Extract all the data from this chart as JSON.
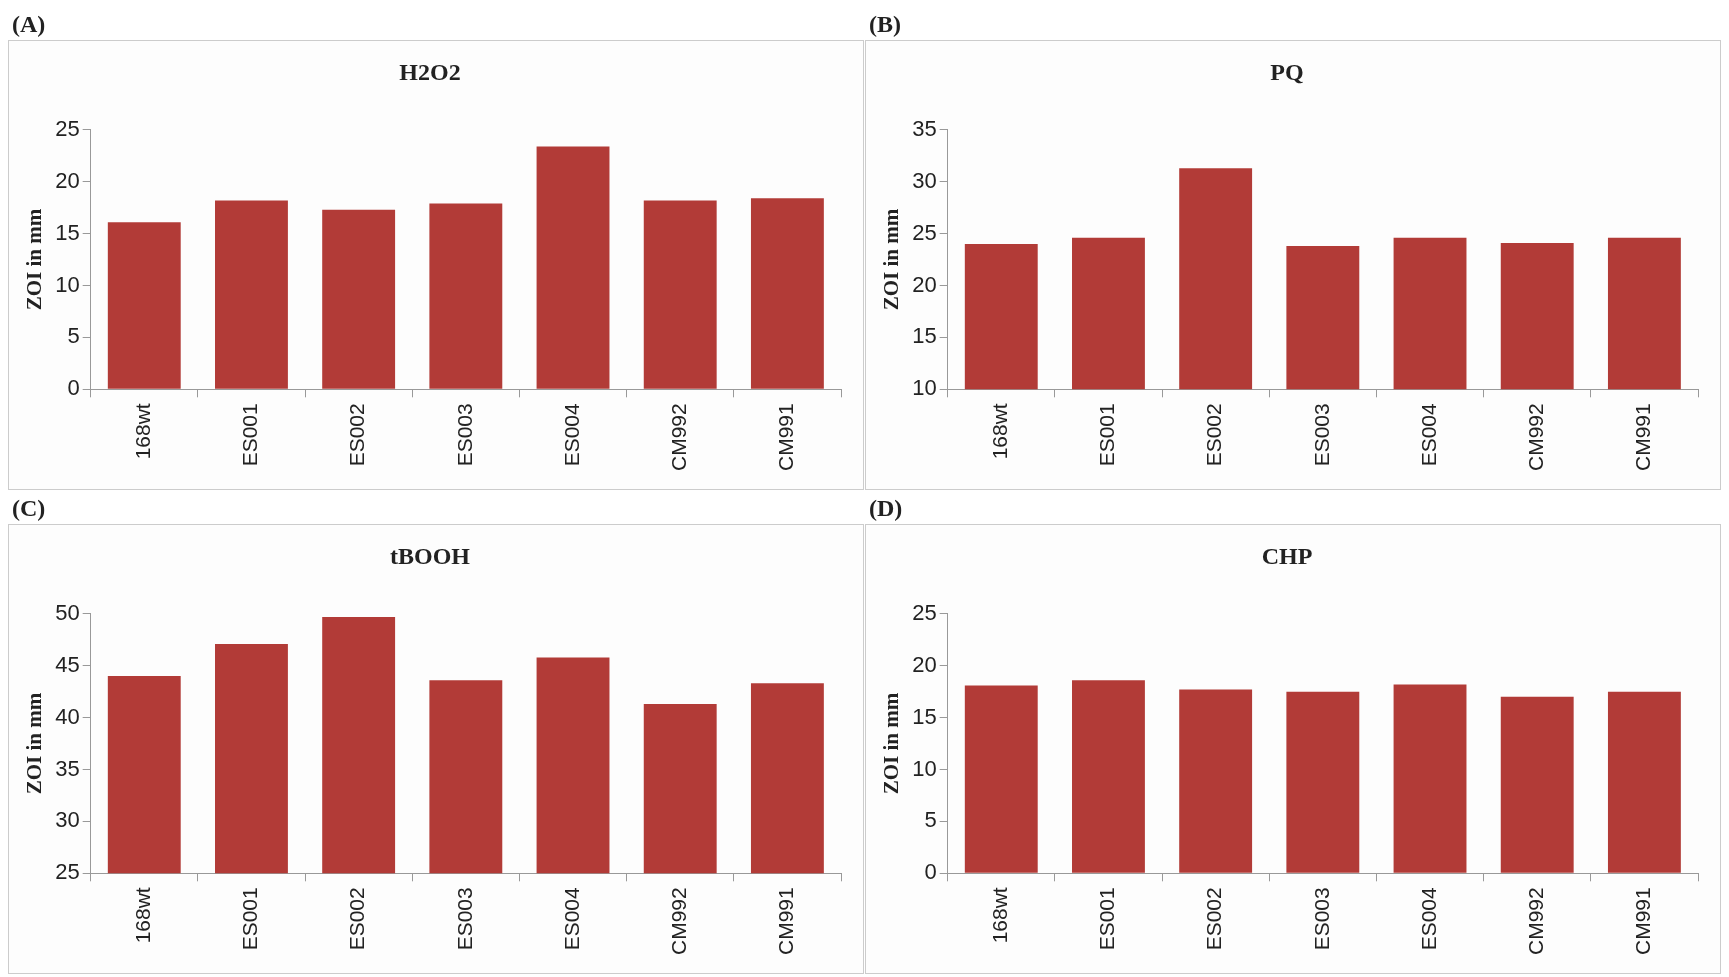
{
  "chart_data": [
    {
      "type": "bar",
      "title": "H2O2",
      "ylabel": "ZOI in mm",
      "annotations": [
        "(A)"
      ],
      "categories": [
        "168wt",
        "ES001",
        "ES002",
        "ES003",
        "ES004",
        "CM992",
        "CM991"
      ],
      "values": [
        16.1,
        18.2,
        17.3,
        17.9,
        23.4,
        18.2,
        18.4
      ],
      "color": "#b23b37",
      "ylim": [
        0,
        25
      ],
      "yticks": [
        0,
        5,
        10,
        15,
        20,
        25
      ]
    },
    {
      "type": "bar",
      "title": "PQ",
      "ylabel": "ZOI in mm",
      "annotations": [
        "(B)"
      ],
      "categories": [
        "168wt",
        "ES001",
        "ES002",
        "ES003",
        "ES004",
        "CM992",
        "CM991"
      ],
      "values": [
        24.0,
        24.6,
        31.3,
        23.8,
        24.6,
        24.1,
        24.6
      ],
      "color": "#b23b37",
      "ylim": [
        10,
        35
      ],
      "yticks": [
        10,
        15,
        20,
        25,
        30,
        35
      ]
    },
    {
      "type": "bar",
      "title": "tBOOH",
      "ylabel": "ZOI in mm",
      "annotations": [
        "(C)"
      ],
      "categories": [
        "168wt",
        "ES001",
        "ES002",
        "ES003",
        "ES004",
        "CM992",
        "CM991"
      ],
      "values": [
        44.0,
        47.1,
        49.7,
        43.6,
        45.8,
        41.3,
        43.3
      ],
      "color": "#b23b37",
      "ylim": [
        25,
        50
      ],
      "yticks": [
        25,
        30,
        35,
        40,
        45,
        50
      ]
    },
    {
      "type": "bar",
      "title": "CHP",
      "ylabel": "ZOI in mm",
      "annotations": [
        "(D)"
      ],
      "categories": [
        "168wt",
        "ES001",
        "ES002",
        "ES003",
        "ES004",
        "CM992",
        "CM991"
      ],
      "values": [
        18.1,
        18.6,
        17.7,
        17.5,
        18.2,
        17.0,
        17.5
      ],
      "color": "#b23b37",
      "ylim": [
        0,
        25
      ],
      "yticks": [
        0,
        5,
        10,
        15,
        20,
        25
      ]
    }
  ]
}
